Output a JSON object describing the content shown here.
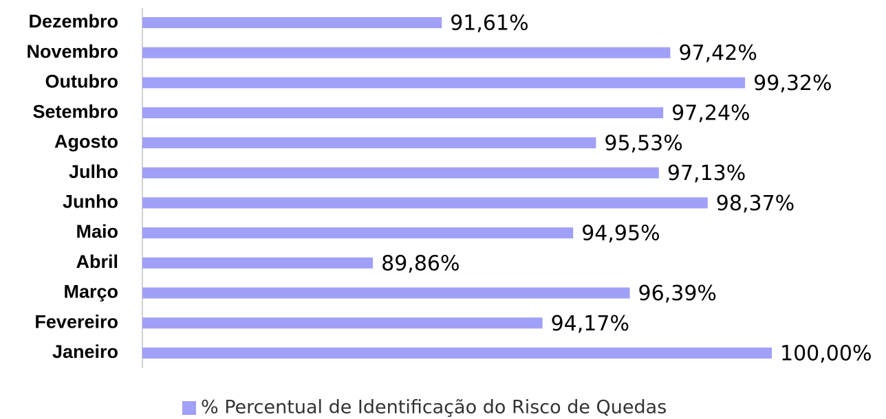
{
  "chart_data": {
    "type": "barh",
    "categories": [
      "Janeiro",
      "Fevereiro",
      "Março",
      "Abril",
      "Maio",
      "Junho",
      "Julho",
      "Agosto",
      "Setembro",
      "Outubro",
      "Novembro",
      "Dezembro"
    ],
    "series": [
      {
        "name": "% Percentual de Identificação do Risco de Quedas",
        "color": "#a0a0f8",
        "values": [
          100.0,
          94.17,
          96.39,
          89.86,
          94.95,
          98.37,
          97.13,
          95.53,
          97.24,
          99.32,
          97.42,
          91.61
        ],
        "value_labels": [
          "100,00%",
          "94,17%",
          "96,39%",
          "89,86%",
          "94,95%",
          "98,37%",
          "97,13%",
          "95,53%",
          "97,24%",
          "99,32%",
          "97,42%",
          "91,61%"
        ]
      }
    ],
    "xlim": [
      84,
      100
    ],
    "legend": "bottom"
  }
}
